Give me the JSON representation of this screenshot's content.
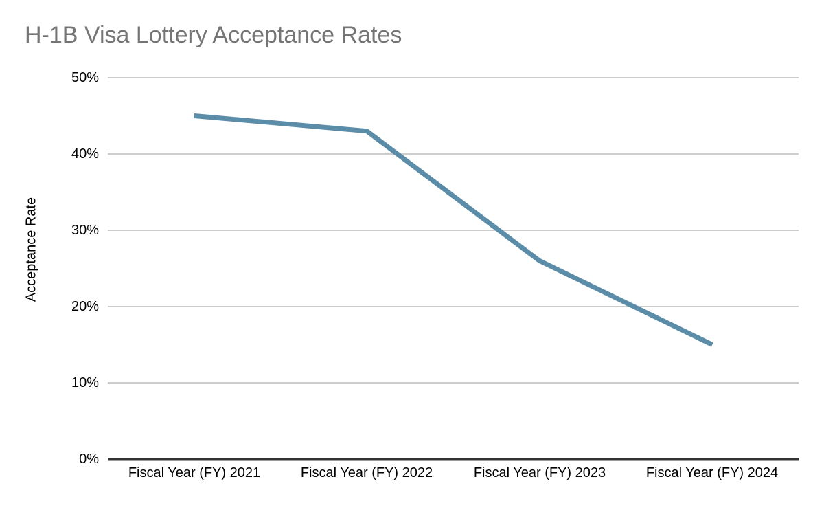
{
  "chart_data": {
    "type": "line",
    "title": "H-1B Visa Lottery Acceptance Rates",
    "ylabel": "Acceptance Rate",
    "categories": [
      "Fiscal Year (FY) 2021",
      "Fiscal Year (FY) 2022",
      "Fiscal Year (FY) 2023",
      "Fiscal Year (FY) 2024"
    ],
    "values": [
      45,
      43,
      26,
      15
    ],
    "y_ticks": [
      "0%",
      "10%",
      "20%",
      "30%",
      "40%",
      "50%"
    ],
    "ylim": [
      0,
      50
    ],
    "grid": true,
    "legend_position": "none",
    "colors": {
      "line": "#5B8CA8",
      "title": "#757575",
      "gridline": "#CCCCCC",
      "axis": "#333333",
      "tick_text": "#000000",
      "background": "#FFFFFF"
    }
  }
}
